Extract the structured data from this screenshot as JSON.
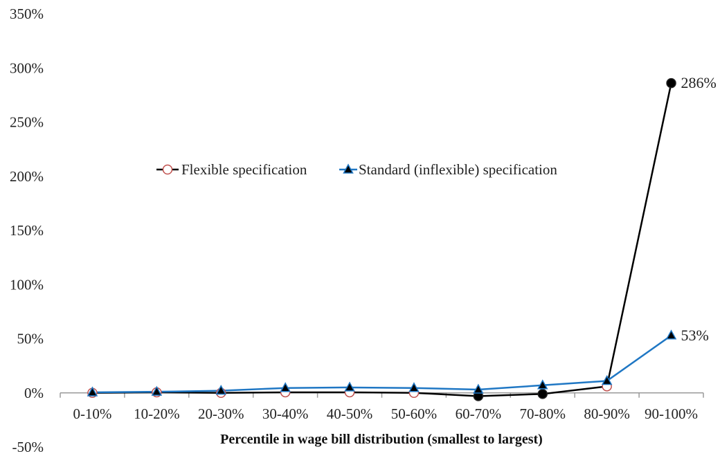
{
  "chart_data": {
    "type": "line",
    "title": "",
    "xlabel": "Percentile in wage bill distribution (smallest to largest)",
    "ylabel": "",
    "categories": [
      "0-10%",
      "10-20%",
      "20-30%",
      "30-40%",
      "40-50%",
      "50-60%",
      "60-70%",
      "70-80%",
      "80-90%",
      "90-100%"
    ],
    "y_ticks": [
      "350%",
      "300%",
      "250%",
      "200%",
      "150%",
      "100%",
      "50%",
      "0%",
      "-50%"
    ],
    "ylim": [
      -50,
      350
    ],
    "grid": false,
    "legend_position": "middle",
    "series": [
      {
        "name": "Flexible specification",
        "color": "#000000",
        "marker": "open-circle",
        "marker_edge": "#c0504d",
        "values": [
          0,
          0.5,
          0,
          0.5,
          0.5,
          0,
          -3,
          -1,
          6,
          286
        ]
      },
      {
        "name": "Standard (inflexible) specification",
        "color": "#1f77c4",
        "marker": "filled-triangle",
        "values": [
          0.5,
          1,
          2,
          4.5,
          5,
          4.5,
          3,
          7,
          11,
          53
        ]
      }
    ],
    "data_labels": [
      {
        "series": 0,
        "index": 9,
        "text": "286%"
      },
      {
        "series": 1,
        "index": 9,
        "text": "53%"
      }
    ]
  }
}
